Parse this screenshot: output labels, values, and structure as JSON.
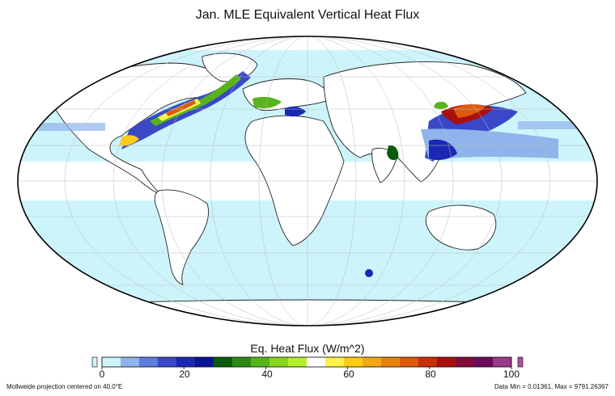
{
  "title": "Jan. MLE Equivalent Vertical Heat Flux",
  "colorbar": {
    "title": "Eq. Heat Flux (W/m^2)",
    "ticks": [
      "0",
      "20",
      "40",
      "60",
      "80",
      "100"
    ],
    "tick_values": [
      0,
      20,
      40,
      60,
      80,
      100
    ],
    "range": [
      0,
      100
    ],
    "under_color": "#cdf4fb",
    "over_color": "#b050a0",
    "colors": [
      "#cdf4fb",
      "#8fb4ec",
      "#5a7ede",
      "#3a48c8",
      "#1a28b4",
      "#0a1496",
      "#0a5a0a",
      "#2c8a12",
      "#58b41c",
      "#88d41e",
      "#b4f02a",
      "#ffffff",
      "#fff24a",
      "#ffcc14",
      "#f4a812",
      "#e8820e",
      "#dc5a0a",
      "#c8300a",
      "#a81010",
      "#820a3a",
      "#6a0a5a",
      "#9a3a8a"
    ]
  },
  "map": {
    "projection": "Mollweide",
    "central_meridian": 40.0,
    "ocean_fill": "#cdf4fb",
    "land_fill": "#ffffff",
    "high_flux_colors": [
      "#1a28b4",
      "#3a48c8",
      "#0a5a0a",
      "#58b41c",
      "#b4f02a",
      "#fff24a",
      "#ffcc14",
      "#dc5a0a",
      "#a81010"
    ]
  },
  "footer": {
    "left": "Mollweide projection centered on 40.0°E",
    "right": "Data Min = 0.01361, Max = 9791.26367"
  }
}
